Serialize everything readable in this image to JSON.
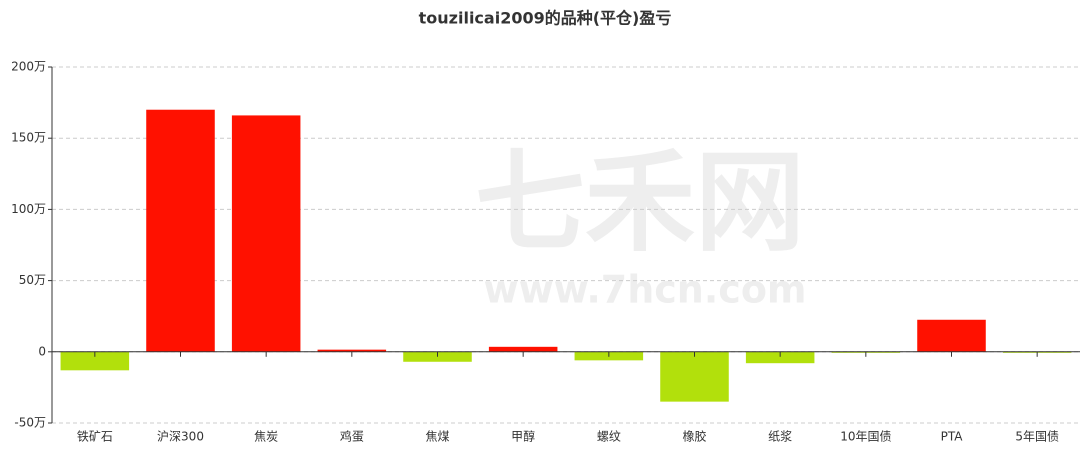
{
  "chart_data": {
    "type": "bar",
    "title": "touzilicai2009的品种(平仓)盈亏",
    "categories": [
      "铁矿石",
      "沪深300",
      "焦炭",
      "鸡蛋",
      "焦煤",
      "甲醇",
      "螺纹",
      "橡胶",
      "纸浆",
      "10年国债",
      "PTA",
      "5年国债"
    ],
    "values": [
      -13,
      170,
      166,
      1.5,
      -7,
      3.5,
      -6,
      -35,
      -8,
      -0.5,
      22.5,
      -0.5
    ],
    "color_positive": "#ff1100",
    "color_negative": "#b2e00c",
    "ylim": [
      -50,
      200
    ],
    "yticks": [
      {
        "value": -50,
        "label": "-50万"
      },
      0,
      {
        "value": 50,
        "label": "50万"
      },
      {
        "value": 100,
        "label": "100万"
      },
      {
        "value": 150,
        "label": "150万"
      },
      {
        "value": 200,
        "label": "200万"
      }
    ],
    "grid": true,
    "watermark": "七禾网",
    "watermark_url": "www.7hcn.com"
  }
}
